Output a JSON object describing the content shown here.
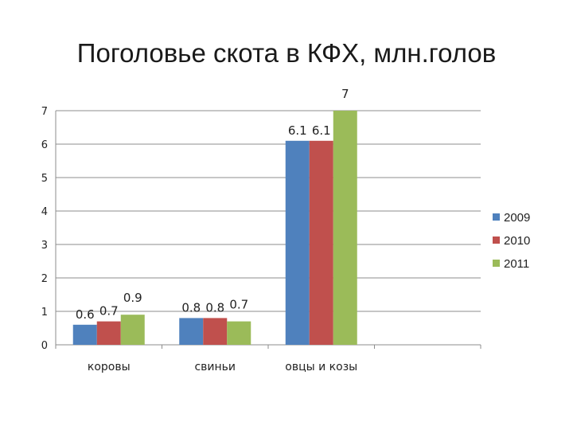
{
  "title": "Поголовье  скота в КФХ, млн.голов",
  "chart_data": {
    "type": "bar",
    "categories": [
      "коровы",
      "свиньи",
      "овцы и козы"
    ],
    "series": [
      {
        "name": "2009",
        "values": [
          0.6,
          0.8,
          6.1
        ],
        "color": "#4f81bd"
      },
      {
        "name": "2010",
        "values": [
          0.7,
          0.8,
          6.1
        ],
        "color": "#c0504d"
      },
      {
        "name": "2011",
        "values": [
          0.9,
          0.7,
          7
        ],
        "color": "#9bbb59"
      }
    ],
    "ylim": [
      0,
      7
    ],
    "yticks": [
      "0",
      "1",
      "2",
      "3",
      "4",
      "5",
      "6",
      "7"
    ],
    "grid": true,
    "legend": "right"
  }
}
